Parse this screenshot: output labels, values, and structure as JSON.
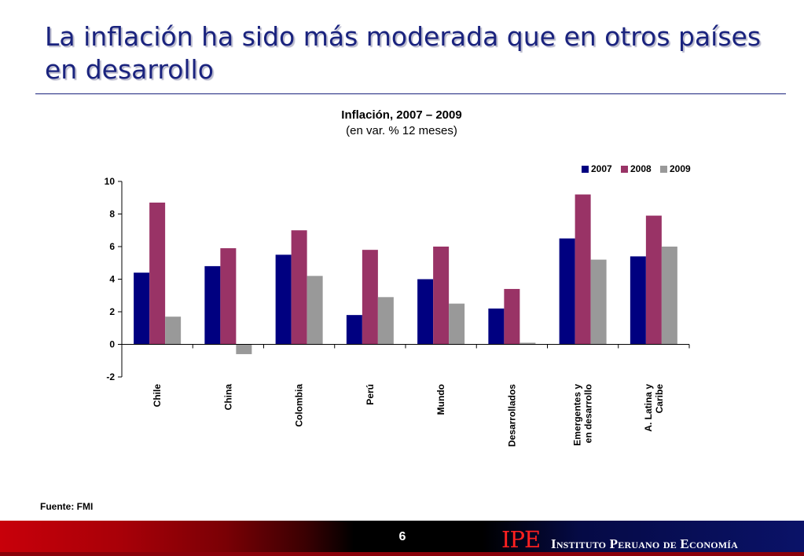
{
  "slide": {
    "title": "La inflación ha sido más moderada que en otros países en desarrollo",
    "source": "Fuente: FMI",
    "page_number": "6",
    "logo_text": "IPE",
    "institution": "Instituto Peruano de Economía"
  },
  "chart_data": {
    "type": "bar",
    "title": "Inflación, 2007 – 2009",
    "subtitle": "(en var. % 12 meses)",
    "xlabel": "",
    "ylabel": "",
    "ylim": [
      -2,
      10
    ],
    "yticks": [
      -2,
      0,
      2,
      4,
      6,
      8,
      10
    ],
    "grid": false,
    "legend_position": "top-right",
    "categories": [
      "Chile",
      "China",
      "Colombia",
      "Perú",
      "Mundo",
      "Desarrollados",
      "Emergentes y en desarrollo",
      "A. Latina y Caribe"
    ],
    "category_lines": [
      [
        "Chile"
      ],
      [
        "China"
      ],
      [
        "Colombia"
      ],
      [
        "Perú"
      ],
      [
        "Mundo"
      ],
      [
        "Desarrollados"
      ],
      [
        "Emergentes y",
        "en desarrollo"
      ],
      [
        "A. Latina y",
        "Caribe"
      ]
    ],
    "series": [
      {
        "name": "2007",
        "color": "#000080",
        "values": [
          4.4,
          4.8,
          5.5,
          1.8,
          4.0,
          2.2,
          6.5,
          5.4
        ]
      },
      {
        "name": "2008",
        "color": "#993366",
        "values": [
          8.7,
          5.9,
          7.0,
          5.8,
          6.0,
          3.4,
          9.2,
          7.9
        ]
      },
      {
        "name": "2009",
        "color": "#999999",
        "values": [
          1.7,
          -0.6,
          4.2,
          2.9,
          2.5,
          0.1,
          5.2,
          6.0
        ]
      }
    ]
  }
}
